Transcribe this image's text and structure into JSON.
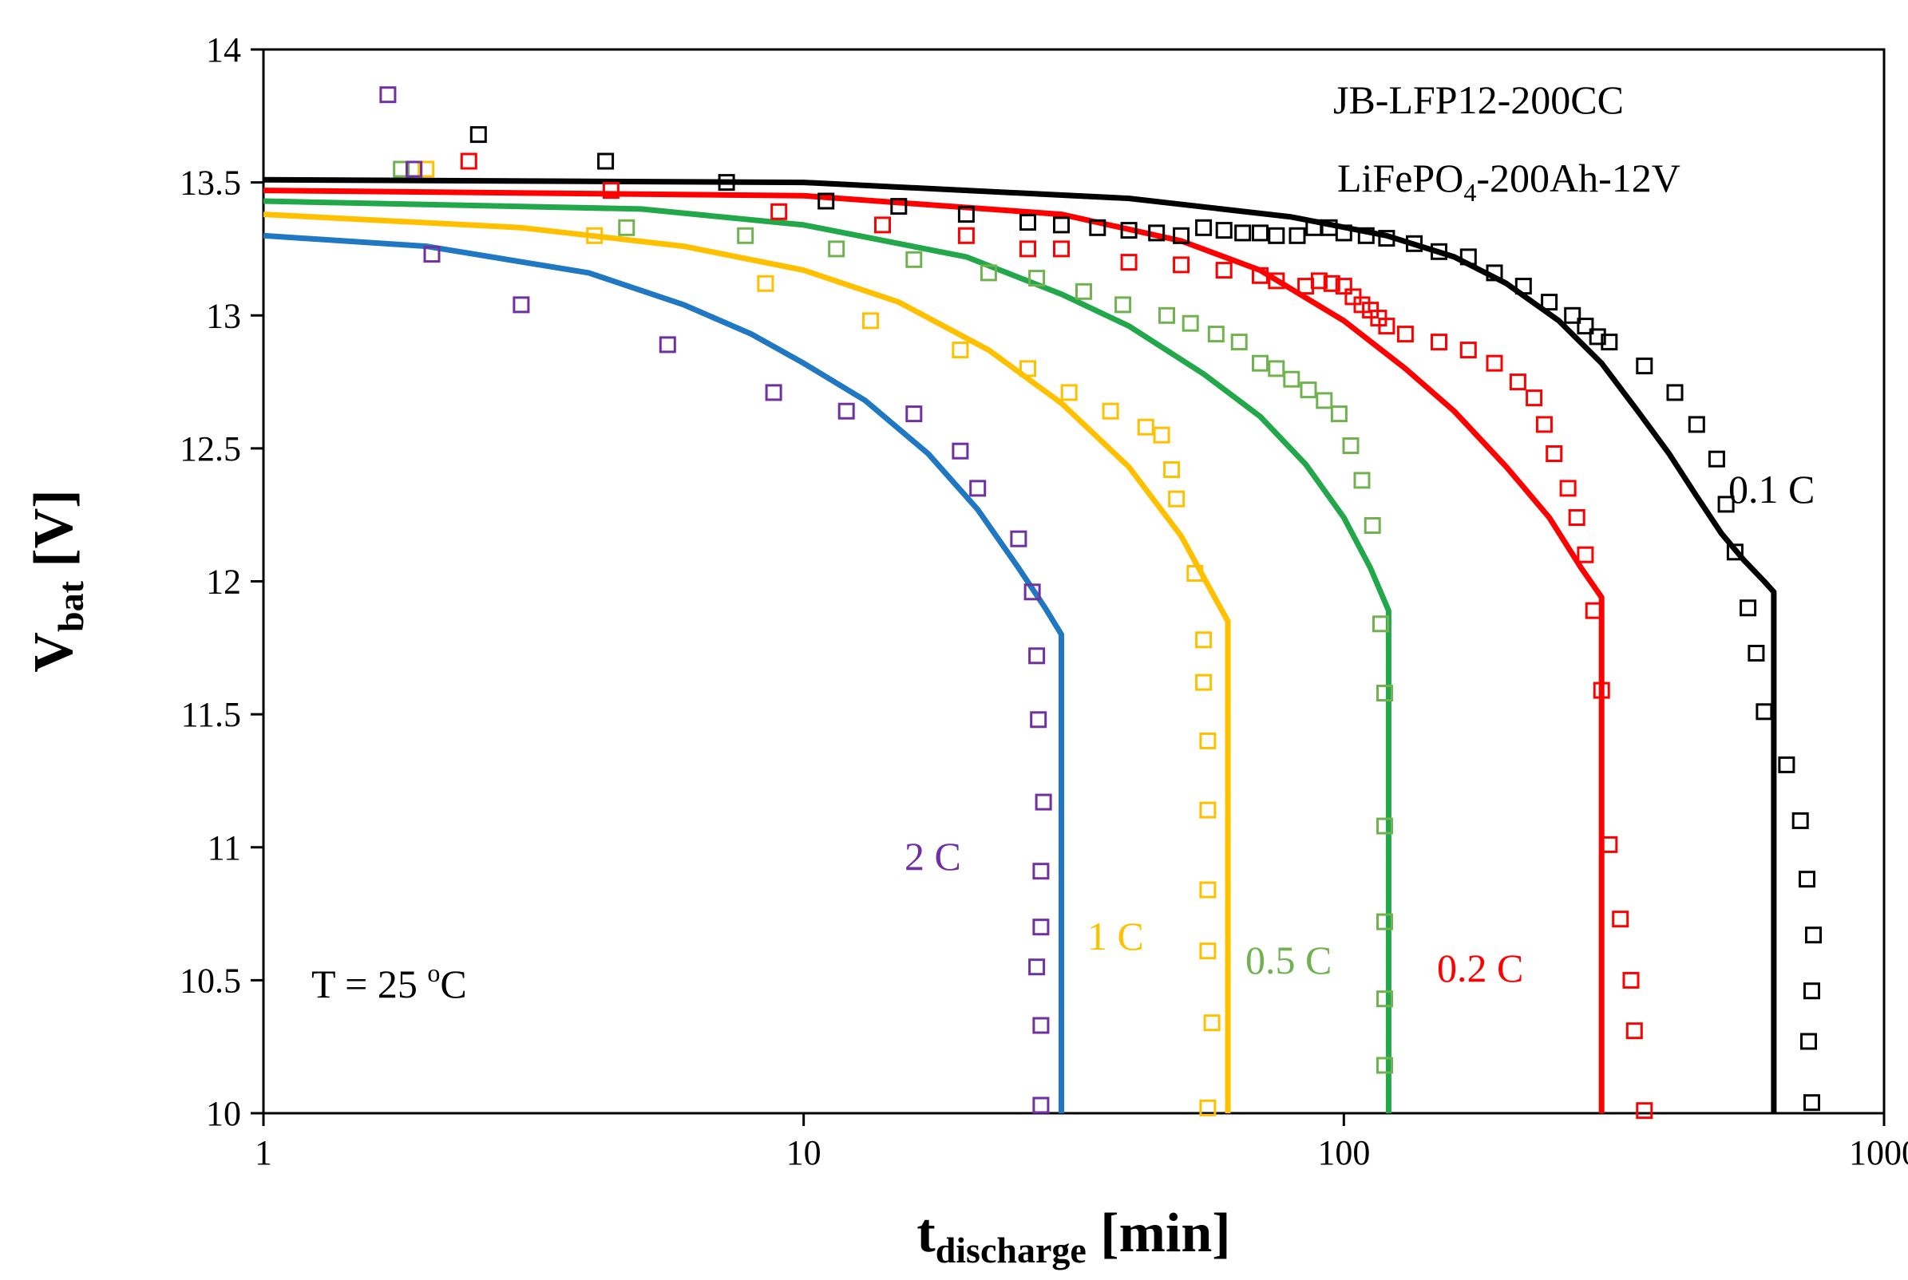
{
  "chart_data": {
    "type": "scatter",
    "title": "",
    "xlabel": {
      "main": "t",
      "sub": "discharge",
      "unit": " [min]"
    },
    "ylabel": {
      "main": "V",
      "sub": "bat",
      "unit": " [V]"
    },
    "xscale": "log",
    "xlim": [
      1,
      1000
    ],
    "ylim": [
      10,
      14
    ],
    "x_ticks": [
      1,
      10,
      100,
      1000
    ],
    "x_tick_labels": [
      "1",
      "10",
      "100",
      "1000"
    ],
    "y_ticks": [
      10,
      10.5,
      11,
      11.5,
      12,
      12.5,
      13,
      13.5,
      14
    ],
    "y_tick_labels": [
      "10",
      "10.5",
      "11",
      "11.5",
      "12",
      "12.5",
      "13",
      "13.5",
      "14"
    ],
    "grid": false,
    "annotations": {
      "model_line1": "JB-LFP12-200CC",
      "model_line2_a": "LiFePO",
      "model_line2_sub": "4",
      "model_line2_b": "-200Ah-12V",
      "temperature_a": "T = 25 ",
      "temperature_sup": "o",
      "temperature_b": "C"
    },
    "series": [
      {
        "name": "0.1 C",
        "line_color": "#000000",
        "marker_color": "#000000",
        "model_curve": [
          [
            1,
            13.51
          ],
          [
            10,
            13.5
          ],
          [
            40,
            13.44
          ],
          [
            80,
            13.37
          ],
          [
            120,
            13.3
          ],
          [
            160,
            13.22
          ],
          [
            200,
            13.12
          ],
          [
            250,
            12.98
          ],
          [
            300,
            12.82
          ],
          [
            350,
            12.64
          ],
          [
            400,
            12.48
          ],
          [
            450,
            12.32
          ],
          [
            500,
            12.18
          ],
          [
            550,
            12.08
          ],
          [
            600,
            12.0
          ],
          [
            625,
            11.96
          ],
          [
            625,
            10
          ]
        ],
        "measured": [
          [
            1.9,
            13.55
          ],
          [
            2.5,
            13.68
          ],
          [
            4.3,
            13.58
          ],
          [
            7.2,
            13.5
          ],
          [
            11,
            13.43
          ],
          [
            15,
            13.41
          ],
          [
            20,
            13.38
          ],
          [
            26,
            13.35
          ],
          [
            30,
            13.34
          ],
          [
            35,
            13.33
          ],
          [
            40,
            13.32
          ],
          [
            45,
            13.31
          ],
          [
            50,
            13.3
          ],
          [
            55,
            13.33
          ],
          [
            60,
            13.32
          ],
          [
            65,
            13.31
          ],
          [
            70,
            13.31
          ],
          [
            75,
            13.3
          ],
          [
            82,
            13.3
          ],
          [
            88,
            13.33
          ],
          [
            94,
            13.33
          ],
          [
            100,
            13.31
          ],
          [
            110,
            13.3
          ],
          [
            120,
            13.29
          ],
          [
            135,
            13.27
          ],
          [
            150,
            13.24
          ],
          [
            170,
            13.22
          ],
          [
            190,
            13.16
          ],
          [
            215,
            13.11
          ],
          [
            240,
            13.05
          ],
          [
            265,
            13.0
          ],
          [
            280,
            12.96
          ],
          [
            295,
            12.92
          ],
          [
            310,
            12.9
          ],
          [
            360,
            12.81
          ],
          [
            410,
            12.71
          ],
          [
            450,
            12.59
          ],
          [
            490,
            12.46
          ],
          [
            510,
            12.29
          ],
          [
            530,
            12.11
          ],
          [
            560,
            11.9
          ],
          [
            580,
            11.73
          ],
          [
            600,
            11.51
          ],
          [
            660,
            11.31
          ],
          [
            700,
            11.1
          ],
          [
            720,
            10.88
          ],
          [
            740,
            10.67
          ],
          [
            735,
            10.46
          ],
          [
            725,
            10.27
          ],
          [
            735,
            10.04
          ]
        ]
      },
      {
        "name": "0.2 C",
        "line_color": "#ff0000",
        "marker_color": "#ff0000",
        "model_curve": [
          [
            1,
            13.47
          ],
          [
            10,
            13.45
          ],
          [
            30,
            13.38
          ],
          [
            50,
            13.28
          ],
          [
            70,
            13.17
          ],
          [
            100,
            12.98
          ],
          [
            130,
            12.8
          ],
          [
            160,
            12.64
          ],
          [
            200,
            12.43
          ],
          [
            240,
            12.24
          ],
          [
            275,
            12.05
          ],
          [
            300,
            11.94
          ],
          [
            300,
            10
          ]
        ],
        "measured": [
          [
            2.4,
            13.58
          ],
          [
            4.4,
            13.47
          ],
          [
            9,
            13.39
          ],
          [
            14,
            13.34
          ],
          [
            20,
            13.3
          ],
          [
            26,
            13.25
          ],
          [
            30,
            13.25
          ],
          [
            40,
            13.2
          ],
          [
            50,
            13.19
          ],
          [
            60,
            13.17
          ],
          [
            70,
            13.15
          ],
          [
            75,
            13.13
          ],
          [
            85,
            13.11
          ],
          [
            90,
            13.13
          ],
          [
            95,
            13.12
          ],
          [
            100,
            13.11
          ],
          [
            104,
            13.07
          ],
          [
            108,
            13.04
          ],
          [
            112,
            13.02
          ],
          [
            116,
            12.99
          ],
          [
            120,
            12.96
          ],
          [
            130,
            12.93
          ],
          [
            150,
            12.9
          ],
          [
            170,
            12.87
          ],
          [
            190,
            12.82
          ],
          [
            210,
            12.75
          ],
          [
            225,
            12.69
          ],
          [
            235,
            12.59
          ],
          [
            245,
            12.48
          ],
          [
            260,
            12.35
          ],
          [
            270,
            12.24
          ],
          [
            280,
            12.1
          ],
          [
            290,
            11.89
          ],
          [
            300,
            11.59
          ],
          [
            310,
            11.01
          ],
          [
            325,
            10.73
          ],
          [
            340,
            10.5
          ],
          [
            345,
            10.31
          ],
          [
            360,
            10.01
          ]
        ]
      },
      {
        "name": "0.5 C",
        "line_color": "#22a84a",
        "marker_color": "#6fb24f",
        "model_curve": [
          [
            1,
            13.43
          ],
          [
            5,
            13.4
          ],
          [
            10,
            13.34
          ],
          [
            20,
            13.22
          ],
          [
            30,
            13.08
          ],
          [
            40,
            12.96
          ],
          [
            55,
            12.78
          ],
          [
            70,
            12.62
          ],
          [
            85,
            12.44
          ],
          [
            100,
            12.24
          ],
          [
            112,
            12.05
          ],
          [
            121,
            11.89
          ],
          [
            121,
            10
          ]
        ],
        "measured": [
          [
            1.8,
            13.55
          ],
          [
            4.7,
            13.33
          ],
          [
            7.8,
            13.3
          ],
          [
            11.5,
            13.25
          ],
          [
            16,
            13.21
          ],
          [
            22,
            13.16
          ],
          [
            27,
            13.14
          ],
          [
            33,
            13.09
          ],
          [
            39,
            13.04
          ],
          [
            47,
            13.0
          ],
          [
            52,
            12.97
          ],
          [
            58,
            12.93
          ],
          [
            64,
            12.9
          ],
          [
            70,
            12.82
          ],
          [
            75,
            12.8
          ],
          [
            80,
            12.76
          ],
          [
            86,
            12.72
          ],
          [
            92,
            12.68
          ],
          [
            98,
            12.63
          ],
          [
            103,
            12.51
          ],
          [
            108,
            12.38
          ],
          [
            113,
            12.21
          ],
          [
            117,
            11.84
          ],
          [
            119,
            11.58
          ],
          [
            119,
            11.08
          ],
          [
            119,
            10.72
          ],
          [
            119,
            10.43
          ],
          [
            119,
            10.18
          ]
        ]
      },
      {
        "name": "1 C",
        "line_color": "#ffc000",
        "marker_color": "#ffc000",
        "model_curve": [
          [
            1,
            13.38
          ],
          [
            3,
            13.33
          ],
          [
            6,
            13.26
          ],
          [
            10,
            13.17
          ],
          [
            15,
            13.05
          ],
          [
            22,
            12.87
          ],
          [
            30,
            12.67
          ],
          [
            40,
            12.43
          ],
          [
            50,
            12.17
          ],
          [
            58,
            11.93
          ],
          [
            61,
            11.85
          ],
          [
            61,
            10
          ]
        ],
        "measured": [
          [
            2,
            13.55
          ],
          [
            4.1,
            13.3
          ],
          [
            8.5,
            13.12
          ],
          [
            13.3,
            12.98
          ],
          [
            19.5,
            12.87
          ],
          [
            26,
            12.8
          ],
          [
            31,
            12.71
          ],
          [
            37,
            12.64
          ],
          [
            43,
            12.58
          ],
          [
            46,
            12.55
          ],
          [
            48,
            12.42
          ],
          [
            49,
            12.31
          ],
          [
            53,
            12.03
          ],
          [
            55,
            11.78
          ],
          [
            55,
            11.62
          ],
          [
            56,
            11.4
          ],
          [
            56,
            11.14
          ],
          [
            56,
            10.84
          ],
          [
            56,
            10.61
          ],
          [
            57,
            10.34
          ],
          [
            56,
            10.02
          ]
        ]
      },
      {
        "name": "2 C",
        "line_color": "#1f78c1",
        "marker_color": "#7030a0",
        "model_curve": [
          [
            1,
            13.3
          ],
          [
            2,
            13.26
          ],
          [
            4,
            13.16
          ],
          [
            6,
            13.04
          ],
          [
            8,
            12.93
          ],
          [
            10,
            12.82
          ],
          [
            13,
            12.68
          ],
          [
            17,
            12.48
          ],
          [
            21,
            12.27
          ],
          [
            25,
            12.05
          ],
          [
            28,
            11.9
          ],
          [
            30,
            11.8
          ],
          [
            30,
            10
          ]
        ],
        "measured": [
          [
            1.7,
            13.83
          ],
          [
            1.9,
            13.55
          ],
          [
            2.05,
            13.23
          ],
          [
            3,
            13.04
          ],
          [
            5.6,
            12.89
          ],
          [
            8.8,
            12.71
          ],
          [
            12,
            12.64
          ],
          [
            16,
            12.63
          ],
          [
            19.5,
            12.49
          ],
          [
            21,
            12.35
          ],
          [
            25,
            12.16
          ],
          [
            26.5,
            11.96
          ],
          [
            27,
            11.72
          ],
          [
            27.2,
            11.48
          ],
          [
            27.8,
            11.17
          ],
          [
            27.5,
            10.91
          ],
          [
            27.5,
            10.7
          ],
          [
            27,
            10.55
          ],
          [
            27.5,
            10.33
          ],
          [
            27.5,
            10.03
          ]
        ]
      }
    ]
  }
}
